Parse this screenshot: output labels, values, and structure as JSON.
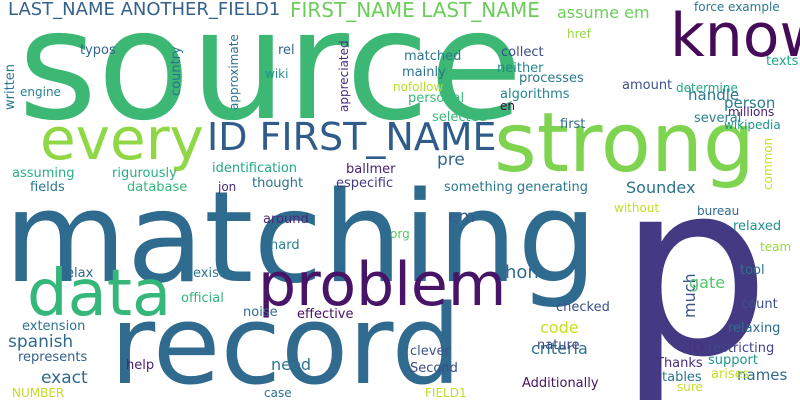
{
  "words": [
    {
      "text": "source",
      "color": "#3cb774"
    },
    {
      "text": "matching",
      "color": "#2f6b8e"
    },
    {
      "text": "p",
      "color": "#433a83"
    },
    {
      "text": "record",
      "color": "#306a8e"
    },
    {
      "text": "strong",
      "color": "#7ed34f"
    },
    {
      "text": "know",
      "color": "#450b58"
    },
    {
      "text": "problem",
      "color": "#471468"
    },
    {
      "text": "data",
      "color": "#35b779"
    },
    {
      "text": "every",
      "color": "#8fd744"
    },
    {
      "text": "ID FIRST_NAME",
      "color": "#2f5c8a"
    },
    {
      "text": "LAST_NAME ANOTHER_FIELD1",
      "color": "#34618d"
    },
    {
      "text": "FIRST_NAME LAST_NAME",
      "color": "#6ccd5a"
    },
    {
      "text": "assume em",
      "color": "#6ccd5a"
    },
    {
      "text": "force example",
      "color": "#2a788e"
    },
    {
      "text": "typos",
      "color": "#31668e"
    },
    {
      "text": "rel",
      "color": "#31668e"
    },
    {
      "text": "matched",
      "color": "#2a788e"
    },
    {
      "text": "collect",
      "color": "#3e4c8a"
    },
    {
      "text": "href",
      "color": "#97d83f"
    },
    {
      "text": "texts",
      "color": "#21a685"
    },
    {
      "text": "country",
      "color": "#2c738e"
    },
    {
      "text": "approximate",
      "color": "#2c738e"
    },
    {
      "text": "appreciated",
      "color": "#462f7c"
    },
    {
      "text": "wiki",
      "color": "#21918c"
    },
    {
      "text": "mainly",
      "color": "#2c728e"
    },
    {
      "text": "neither",
      "color": "#24878e"
    },
    {
      "text": "processes",
      "color": "#2a778e"
    },
    {
      "text": "determine",
      "color": "#22a884"
    },
    {
      "text": "person",
      "color": "#287d8e"
    },
    {
      "text": "amount",
      "color": "#3b528b"
    },
    {
      "text": "written",
      "color": "#2a788e"
    },
    {
      "text": "engine",
      "color": "#26828e"
    },
    {
      "text": "nofollow",
      "color": "#b5de2b"
    },
    {
      "text": "personal",
      "color": "#37b878"
    },
    {
      "text": "algorithms",
      "color": "#24868e"
    },
    {
      "text": "en",
      "color": "#440154"
    },
    {
      "text": "handle",
      "color": "#2a778e"
    },
    {
      "text": "millions",
      "color": "#481e6f"
    },
    {
      "text": "several",
      "color": "#26828e"
    },
    {
      "text": "selected",
      "color": "#35b779"
    },
    {
      "text": "first",
      "color": "#2f6c8e"
    },
    {
      "text": "wikipedia",
      "color": "#1f948c"
    },
    {
      "text": "identification",
      "color": "#22a884"
    },
    {
      "text": "ballmer",
      "color": "#482173"
    },
    {
      "text": "pre",
      "color": "#31678e"
    },
    {
      "text": "common",
      "color": "#c2df23"
    },
    {
      "text": "assuming",
      "color": "#29af7f"
    },
    {
      "text": "rigurously",
      "color": "#29af7f"
    },
    {
      "text": "thought",
      "color": "#2c738e"
    },
    {
      "text": "especific",
      "color": "#443a83"
    },
    {
      "text": "Soundex",
      "color": "#2c728e"
    },
    {
      "text": "fields",
      "color": "#2a788e"
    },
    {
      "text": "database",
      "color": "#33b679"
    },
    {
      "text": "jon",
      "color": "#482979"
    },
    {
      "text": "something generating",
      "color": "#2a788e"
    },
    {
      "text": "without",
      "color": "#c2df23"
    },
    {
      "text": "bureau",
      "color": "#30688e"
    },
    {
      "text": "relaxed",
      "color": "#21918c"
    },
    {
      "text": "em",
      "color": "#35608d"
    },
    {
      "text": "around",
      "color": "#482878"
    },
    {
      "text": "org",
      "color": "#58c765"
    },
    {
      "text": "hard",
      "color": "#27808e"
    },
    {
      "text": "team",
      "color": "#97d83f"
    },
    {
      "text": "relax",
      "color": "#31688e"
    },
    {
      "text": "exists",
      "color": "#2a788e"
    },
    {
      "text": "jhon",
      "color": "#2f6b8e"
    },
    {
      "text": "much",
      "color": "#3b528b"
    },
    {
      "text": "gate",
      "color": "#52c569"
    },
    {
      "text": "tool",
      "color": "#2c738e"
    },
    {
      "text": "official",
      "color": "#31b57b"
    },
    {
      "text": "count",
      "color": "#3b528b"
    },
    {
      "text": "checked",
      "color": "#3b518b"
    },
    {
      "text": "noise",
      "color": "#2f6c8e"
    },
    {
      "text": "effective",
      "color": "#471063"
    },
    {
      "text": "extension",
      "color": "#2c738e"
    },
    {
      "text": "code",
      "color": "#c8e020"
    },
    {
      "text": "relaxing",
      "color": "#2f6c8e"
    },
    {
      "text": "spanish",
      "color": "#30698e"
    },
    {
      "text": "ID",
      "color": "#46337e"
    },
    {
      "text": "restricting",
      "color": "#404688"
    },
    {
      "text": "represents",
      "color": "#34618d"
    },
    {
      "text": "help",
      "color": "#482173"
    },
    {
      "text": "clever",
      "color": "#3b528b"
    },
    {
      "text": "criteria",
      "color": "#2c738e"
    },
    {
      "text": "nature",
      "color": "#404588"
    },
    {
      "text": "Thanks",
      "color": "#472d7b"
    },
    {
      "text": "support",
      "color": "#1f988b"
    },
    {
      "text": "need",
      "color": "#2b758e"
    },
    {
      "text": "exact",
      "color": "#31668e"
    },
    {
      "text": "names",
      "color": "#2f6b8e"
    },
    {
      "text": "Second",
      "color": "#3e4a89"
    },
    {
      "text": "arises",
      "color": "#c2df23"
    },
    {
      "text": "tables",
      "color": "#2a778e"
    },
    {
      "text": "Additionally",
      "color": "#471365"
    },
    {
      "text": "sure",
      "color": "#c2df23"
    },
    {
      "text": "NUMBER",
      "color": "#bddf26"
    },
    {
      "text": "case",
      "color": "#2c728e"
    },
    {
      "text": "FIELD1",
      "color": "#bddf26"
    }
  ]
}
